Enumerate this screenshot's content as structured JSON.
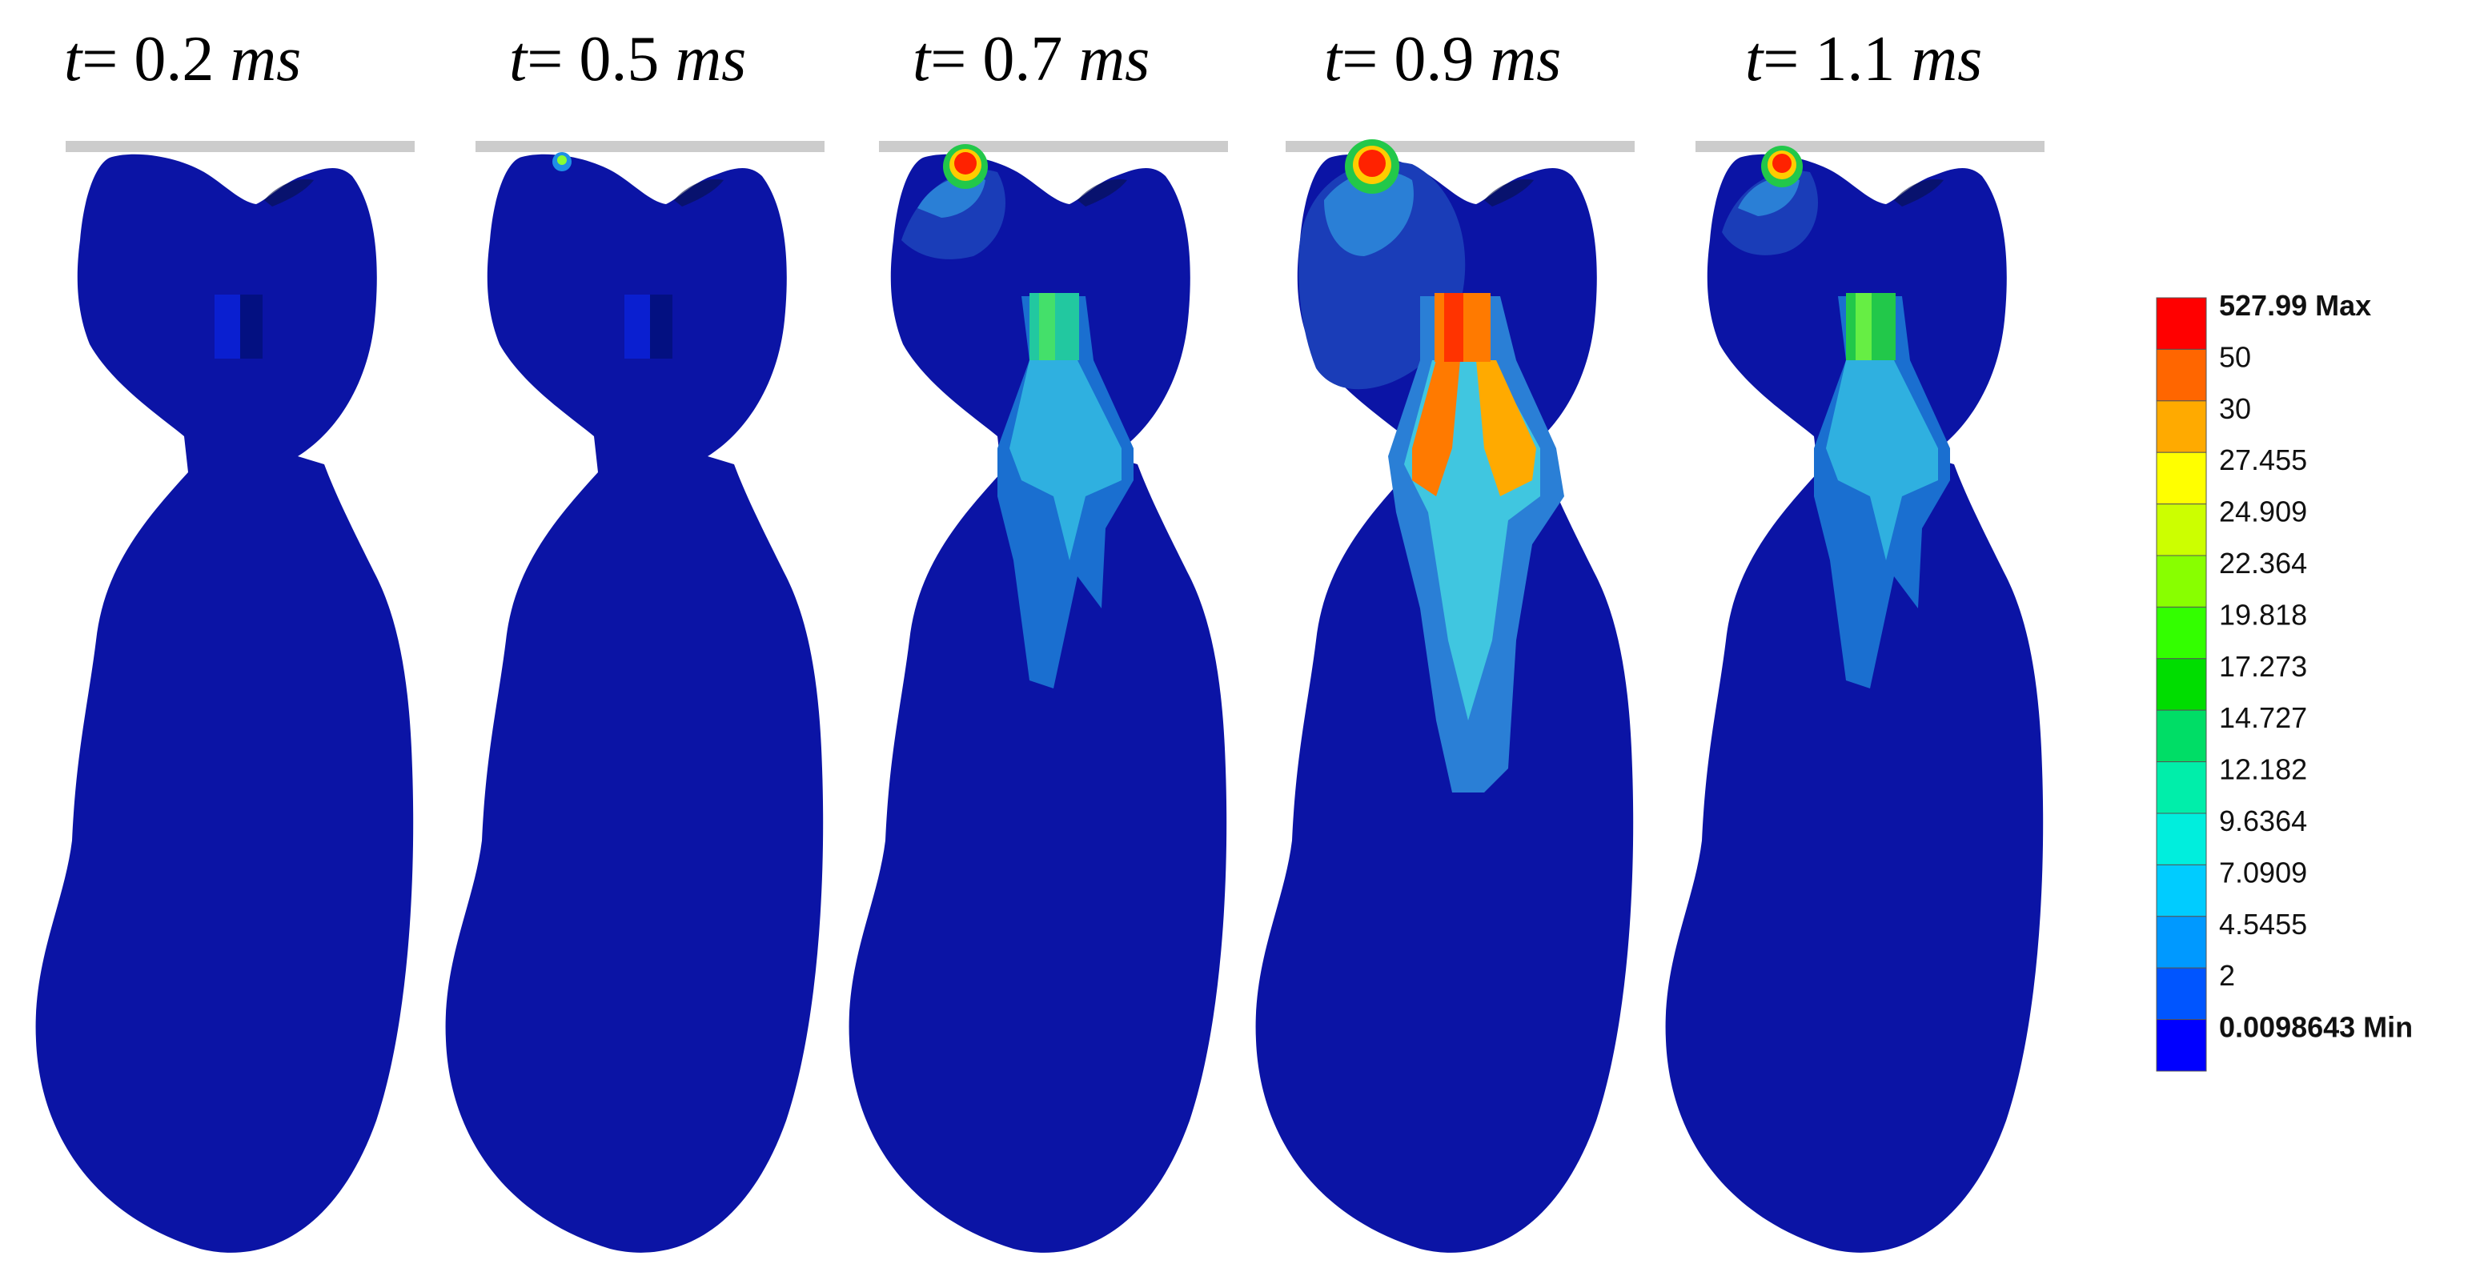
{
  "frames": [
    {
      "t_var": "t",
      "t_eq": "=",
      "t_value": "0.2",
      "t_unit": "ms",
      "stress_level": 0
    },
    {
      "t_var": "t",
      "t_eq": "=",
      "t_value": "0.5",
      "t_unit": "ms",
      "stress_level": 1
    },
    {
      "t_var": "t",
      "t_eq": "=",
      "t_value": "0.7",
      "t_unit": "ms",
      "stress_level": 2
    },
    {
      "t_var": "t",
      "t_eq": "=",
      "t_value": "0.9",
      "t_unit": "ms",
      "stress_level": 3
    },
    {
      "t_var": "t",
      "t_eq": "=",
      "t_value": "1.1",
      "t_unit": "ms",
      "stress_level": 2
    }
  ],
  "legend": {
    "entries": [
      {
        "label": "527.99 Max",
        "color": "#ff0000",
        "bold": true
      },
      {
        "label": "50",
        "color": "#ff6600",
        "bold": false
      },
      {
        "label": "30",
        "color": "#ffaa00",
        "bold": false
      },
      {
        "label": "27.455",
        "color": "#ffff00",
        "bold": false
      },
      {
        "label": "24.909",
        "color": "#ccff00",
        "bold": false
      },
      {
        "label": "22.364",
        "color": "#88ff00",
        "bold": false
      },
      {
        "label": "19.818",
        "color": "#33ff00",
        "bold": false
      },
      {
        "label": "17.273",
        "color": "#00dd00",
        "bold": false
      },
      {
        "label": "14.727",
        "color": "#00dd66",
        "bold": false
      },
      {
        "label": "12.182",
        "color": "#00eeaa",
        "bold": false
      },
      {
        "label": "9.6364",
        "color": "#00eedd",
        "bold": false
      },
      {
        "label": "7.0909",
        "color": "#00ccff",
        "bold": false
      },
      {
        "label": "4.5455",
        "color": "#0099ff",
        "bold": false
      },
      {
        "label": "2",
        "color": "#0055ff",
        "bold": false
      },
      {
        "label": "0.0098643 Min",
        "color": "#0000ff",
        "bold": true
      }
    ]
  },
  "colors": {
    "body_blue": "#0b14a5",
    "plate_gray": "#cccccc",
    "contour_dark": "#1a3db8",
    "contour_mid": "#2a7fd6",
    "contour_light": "#40c6e0",
    "green": "#22c84a",
    "red": "#ff2200",
    "orange": "#ff7a00"
  }
}
